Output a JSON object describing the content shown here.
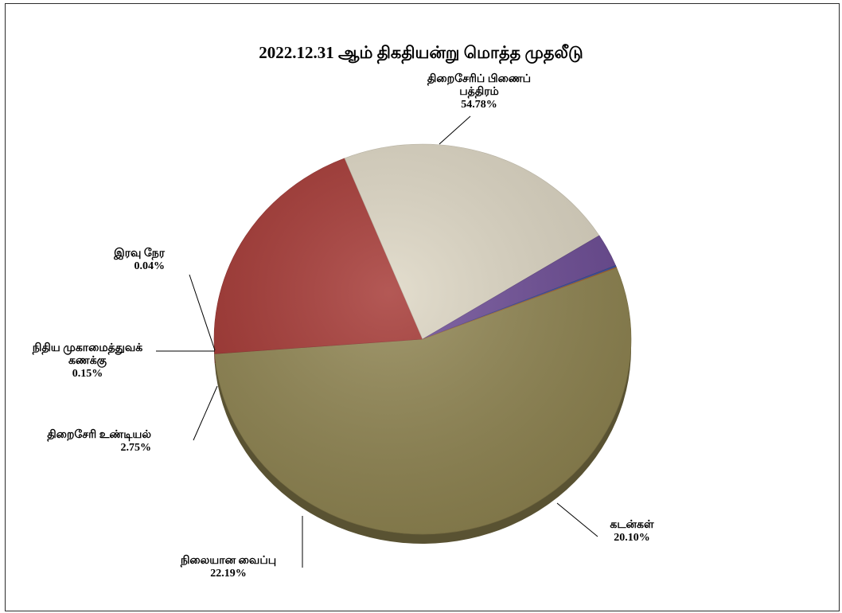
{
  "chart_data": {
    "type": "pie",
    "title": "2022.12.31 ஆம் திகதியன்று மொத்த முதலீடு",
    "slices": [
      {
        "label": "திறைசேரிப் பிணைப் பத்திரம்",
        "label_lines": [
          "திறைசேரிப் பிணைப்",
          "பத்திரம்"
        ],
        "value": 54.78,
        "value_label": "54.78%",
        "color": "#8f8450"
      },
      {
        "label": "கடன்கள்",
        "label_lines": [
          "கடன்கள்"
        ],
        "value": 20.1,
        "value_label": "20.10%",
        "color": "#a33430"
      },
      {
        "label": "நிலையான வைப்பு",
        "label_lines": [
          "நிலையான வைப்பு"
        ],
        "value": 22.19,
        "value_label": "22.19%",
        "color": "#ddd6c3"
      },
      {
        "label": "திறைசேரி உண்டியல்",
        "label_lines": [
          "திறைசேரி உண்டியல்"
        ],
        "value": 2.75,
        "value_label": "2.75%",
        "color": "#6c4b95"
      },
      {
        "label": "நிதிய முகாமைத்துவக் கணக்கு",
        "label_lines": [
          "நிதிய முகாமைத்துவக்",
          "கணக்கு"
        ],
        "value": 0.15,
        "value_label": "0.15%",
        "color": "#3b4fa0"
      },
      {
        "label": "இரவு நேர",
        "label_lines": [
          "இரவு நேர"
        ],
        "value": 0.04,
        "value_label": "0.04%",
        "color": "#c8742a"
      }
    ],
    "legend": "none"
  }
}
